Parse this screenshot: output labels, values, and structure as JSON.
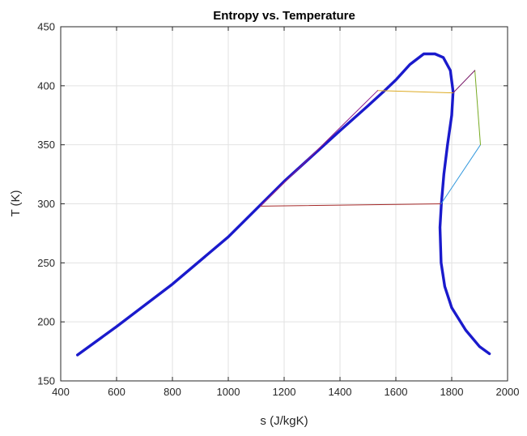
{
  "chart_data": {
    "type": "line",
    "title": "Entropy vs. Temperature",
    "xlabel": "s (J/kgK)",
    "ylabel": "T (K)",
    "xlim": [
      400,
      2000
    ],
    "ylim": [
      150,
      450
    ],
    "xticks": [
      400,
      600,
      800,
      1000,
      1200,
      1400,
      1600,
      1800,
      2000
    ],
    "yticks": [
      150,
      200,
      250,
      300,
      350,
      400,
      450
    ],
    "grid": true,
    "box": true,
    "series": [
      {
        "color": "#1a1acc",
        "style": "thick",
        "points": [
          [
            460,
            172
          ],
          [
            600,
            196
          ],
          [
            800,
            232
          ],
          [
            1000,
            272
          ],
          [
            1200,
            319
          ],
          [
            1400,
            362
          ],
          [
            1500,
            383
          ],
          [
            1560,
            396
          ],
          [
            1600,
            405
          ],
          [
            1650,
            418
          ],
          [
            1700,
            427
          ],
          [
            1740,
            427
          ],
          [
            1770,
            424
          ],
          [
            1795,
            413
          ],
          [
            1805,
            395
          ],
          [
            1800,
            375
          ],
          [
            1785,
            350
          ],
          [
            1772,
            325
          ],
          [
            1763,
            300
          ],
          [
            1758,
            280
          ],
          [
            1762,
            250
          ],
          [
            1775,
            230
          ],
          [
            1800,
            212
          ],
          [
            1850,
            193
          ],
          [
            1900,
            179
          ],
          [
            1935,
            173
          ]
        ]
      },
      {
        "color": "#a52a2a",
        "style": "thin",
        "points": [
          [
            1115,
            298
          ],
          [
            1762,
            300
          ]
        ]
      },
      {
        "color": "#3399dd",
        "style": "thin",
        "points": [
          [
            1762,
            300
          ],
          [
            1903,
            350
          ]
        ]
      },
      {
        "color": "#77aa22",
        "style": "thin",
        "points": [
          [
            1903,
            350
          ],
          [
            1883,
            413
          ]
        ]
      },
      {
        "color": "#7a1a6a",
        "style": "thin",
        "points": [
          [
            1883,
            413
          ],
          [
            1805,
            394
          ]
        ]
      },
      {
        "color": "#ddaa22",
        "style": "thin",
        "points": [
          [
            1805,
            394
          ],
          [
            1535,
            396
          ]
        ]
      },
      {
        "color": "#8b1a8b",
        "style": "thin",
        "points": [
          [
            1535,
            396
          ],
          [
            1115,
            298
          ]
        ]
      }
    ]
  }
}
